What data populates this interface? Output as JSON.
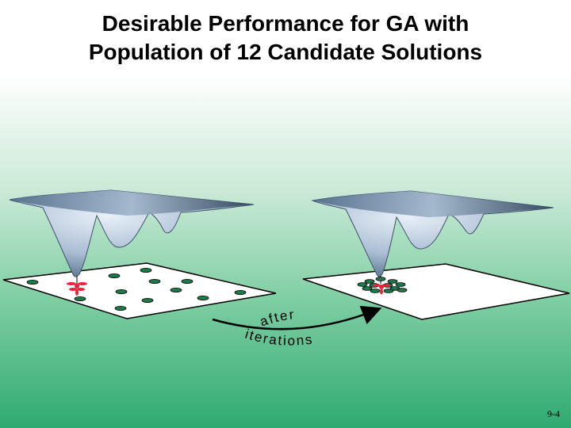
{
  "title": {
    "line1": "Desirable Performance for GA with",
    "line2": "Population of 12 Candidate Solutions"
  },
  "arrow": {
    "label_top": "after",
    "label_bottom": "iterations"
  },
  "page_number": "9-4",
  "colors": {
    "surface_light": "#d6e2f0",
    "surface_dark": "#5a7894",
    "candidate": "#1b7a4a",
    "optimum": "#e8243a"
  }
}
